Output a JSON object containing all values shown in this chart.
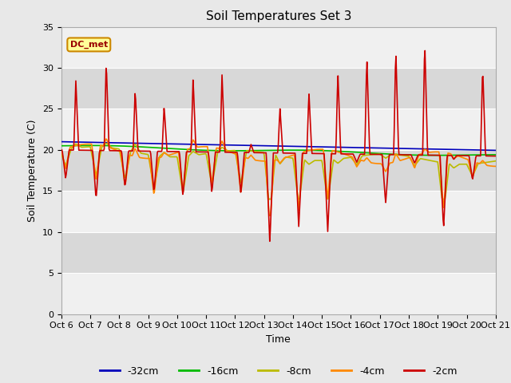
{
  "title": "Soil Temperatures Set 3",
  "xlabel": "Time",
  "ylabel": "Soil Temperature (C)",
  "ylim": [
    0,
    35
  ],
  "yticks": [
    0,
    5,
    10,
    15,
    20,
    25,
    30,
    35
  ],
  "xtick_labels": [
    "Oct 6",
    "Oct 7",
    "Oct 8",
    "Oct 9",
    "Oct 10",
    "Oct 11",
    "Oct 12",
    "Oct 13",
    "Oct 14",
    "Oct 15",
    "Oct 16",
    "Oct 17",
    "Oct 18",
    "Oct 19",
    "Oct 20",
    "Oct 21"
  ],
  "legend_labels": [
    "-32cm",
    "-16cm",
    "-8cm",
    "-4cm",
    "-2cm"
  ],
  "legend_colors": [
    "#0000bb",
    "#00bb00",
    "#bbbb00",
    "#ff8800",
    "#cc0000"
  ],
  "bg_color": "#e8e8e8",
  "plot_bg_light": "#f0f0f0",
  "plot_bg_dark": "#d8d8d8",
  "annotation_text": "DC_met",
  "annotation_bg": "#ffff99",
  "annotation_border": "#cc8800",
  "annotation_text_color": "#990000",
  "title_fontsize": 11,
  "axis_fontsize": 9,
  "tick_fontsize": 8
}
